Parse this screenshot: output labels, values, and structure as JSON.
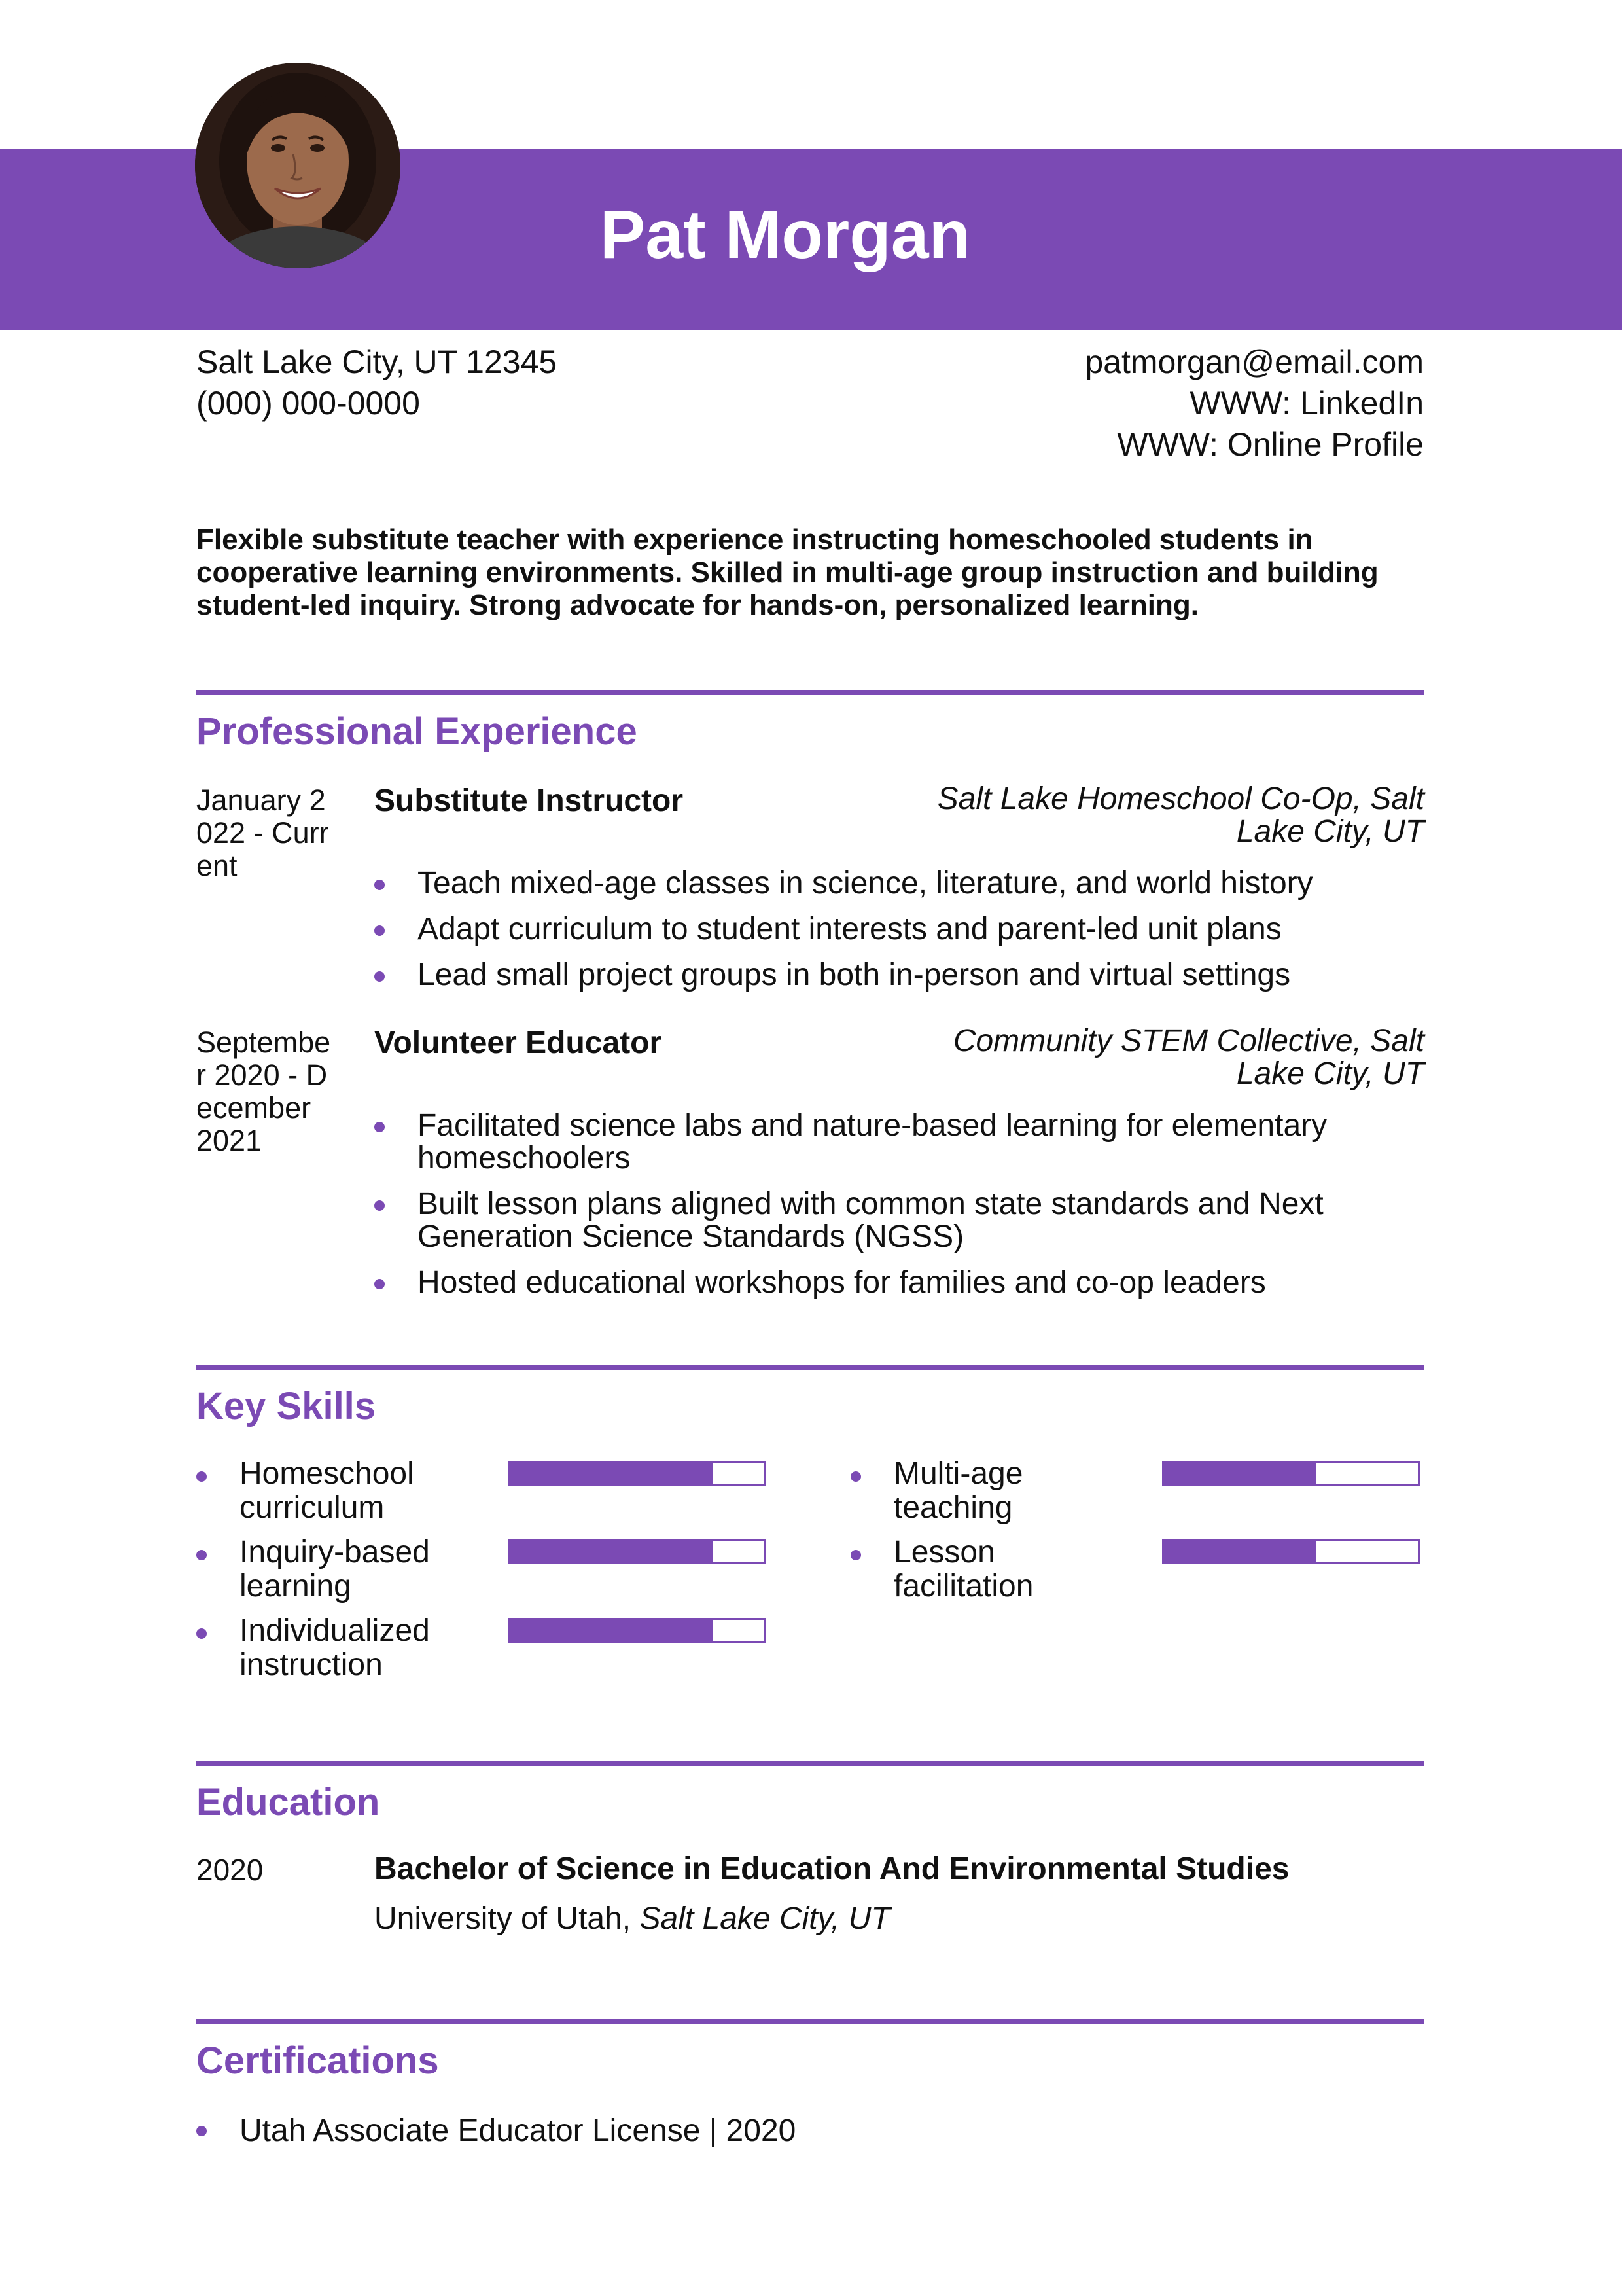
{
  "header": {
    "name": "Pat Morgan",
    "accent_color": "#7b4ab4",
    "photo_icon": "person-avatar-icon"
  },
  "contact": {
    "address": "Salt Lake City, UT 12345",
    "phone": "(000) 000-0000",
    "email": "patmorgan@email.com",
    "linkedin": "WWW: LinkedIn",
    "profile": "WWW: Online Profile"
  },
  "summary": "Flexible substitute teacher with experience instructing homeschooled students in cooperative learning environments. Skilled in multi-age group instruction and building student-led inquiry. Strong advocate for hands-on, personalized learning.",
  "experience": {
    "heading": "Professional Experience",
    "jobs": [
      {
        "date": "January 2022 - Current",
        "title": "Substitute Instructor",
        "company": "Salt Lake Homeschool Co-Op, Salt Lake City, UT",
        "bullets": [
          "Teach mixed-age classes in science, literature, and world history",
          "Adapt curriculum to student interests and parent-led unit plans",
          "Lead small project groups in both in-person and virtual settings"
        ]
      },
      {
        "date": "September 2020 - December 2021",
        "title": "Volunteer Educator",
        "company": "Community STEM Collective, Salt Lake City, UT",
        "bullets": [
          "Facilitated science labs and nature-based learning for elementary homeschoolers",
          "Built lesson plans aligned with common state standards and Next Generation Science Standards (NGSS)",
          "Hosted educational workshops for families and co-op leaders"
        ]
      }
    ]
  },
  "skills": {
    "heading": "Key Skills",
    "items": [
      {
        "name": "Homeschool curriculum",
        "level": 0.8
      },
      {
        "name": "Inquiry-based learning",
        "level": 0.8
      },
      {
        "name": "Individualized instruction",
        "level": 0.8
      },
      {
        "name": "Multi-age teaching",
        "level": 0.6
      },
      {
        "name": "Lesson facilitation",
        "level": 0.6
      }
    ]
  },
  "education": {
    "heading": "Education",
    "year": "2020",
    "degree": "Bachelor of Science in Education And Environmental Studies",
    "school": "University of Utah,",
    "location": "Salt Lake City, UT"
  },
  "certifications": {
    "heading": "Certifications",
    "items": [
      "Utah Associate Educator License | 2020"
    ]
  }
}
